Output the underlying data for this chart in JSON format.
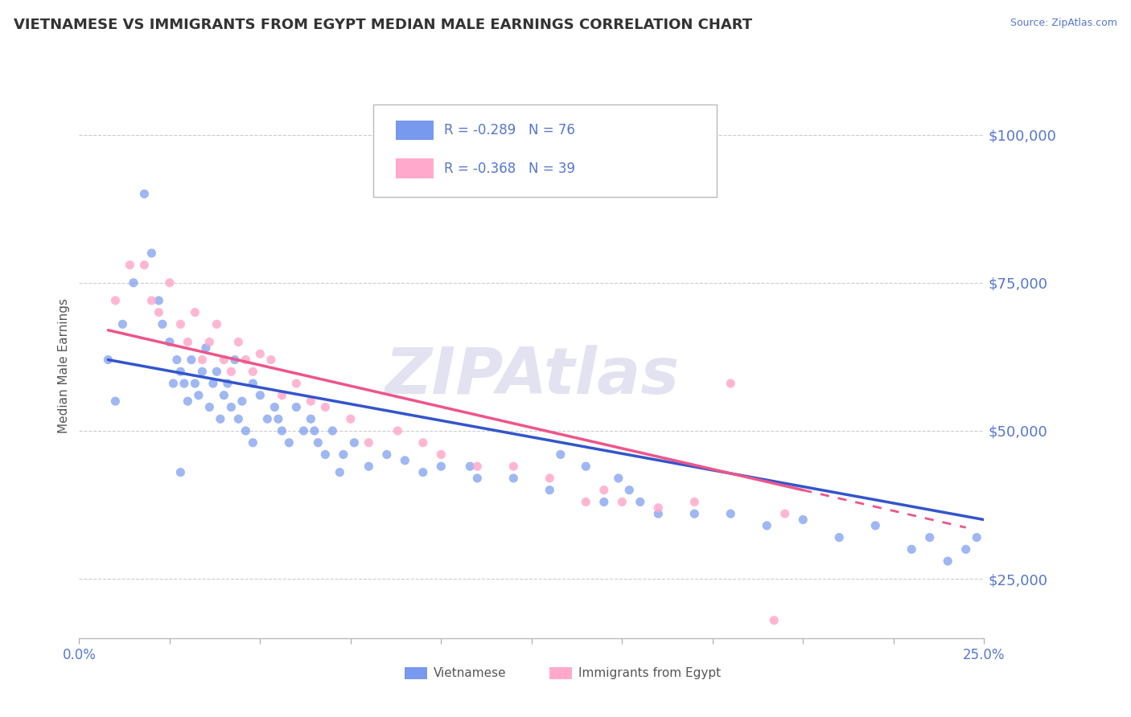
{
  "title": "VIETNAMESE VS IMMIGRANTS FROM EGYPT MEDIAN MALE EARNINGS CORRELATION CHART",
  "source": "Source: ZipAtlas.com",
  "ylabel": "Median Male Earnings",
  "xlim": [
    0.0,
    0.25
  ],
  "ylim": [
    15000,
    107000
  ],
  "yticks": [
    25000,
    50000,
    75000,
    100000
  ],
  "ytick_labels": [
    "$25,000",
    "$50,000",
    "$75,000",
    "$100,000"
  ],
  "xticks": [
    0.0,
    0.025,
    0.05,
    0.075,
    0.1,
    0.125,
    0.15,
    0.175,
    0.2,
    0.225,
    0.25
  ],
  "xtick_labels": [
    "0.0%",
    "",
    "",
    "",
    "",
    "",
    "",
    "",
    "",
    "",
    "25.0%"
  ],
  "legend_entries": [
    {
      "label": "R = -0.289   N = 76",
      "color": "#7799ee"
    },
    {
      "label": "R = -0.368   N = 39",
      "color": "#ffaacc"
    }
  ],
  "series1_label": "Vietnamese",
  "series2_label": "Immigrants from Egypt",
  "series1_color": "#7799ee",
  "series2_color": "#ffaacc",
  "series1_line_color": "#3355cc",
  "series2_line_color": "#ee5588",
  "watermark": "ZIPAtlas",
  "watermark_color": "#d0d0e8",
  "axis_color": "#5577cc",
  "grid_color": "#cccccc",
  "title_color": "#333333",
  "viet_trend_x0": 0.008,
  "viet_trend_y0": 62000,
  "viet_trend_x1": 0.25,
  "viet_trend_y1": 35000,
  "egypt_trend_x0": 0.008,
  "egypt_trend_y0": 67000,
  "egypt_trend_x1": 0.2,
  "egypt_trend_y1": 40000,
  "vietnamese_x": [
    0.008,
    0.01,
    0.012,
    0.015,
    0.018,
    0.02,
    0.022,
    0.023,
    0.025,
    0.026,
    0.027,
    0.028,
    0.029,
    0.03,
    0.031,
    0.032,
    0.033,
    0.034,
    0.035,
    0.036,
    0.037,
    0.038,
    0.039,
    0.04,
    0.041,
    0.042,
    0.043,
    0.044,
    0.045,
    0.046,
    0.048,
    0.05,
    0.052,
    0.054,
    0.056,
    0.058,
    0.06,
    0.062,
    0.064,
    0.066,
    0.068,
    0.07,
    0.073,
    0.076,
    0.08,
    0.085,
    0.09,
    0.095,
    0.1,
    0.11,
    0.12,
    0.13,
    0.145,
    0.155,
    0.16,
    0.17,
    0.18,
    0.19,
    0.2,
    0.21,
    0.22,
    0.23,
    0.235,
    0.24,
    0.245,
    0.248,
    0.149,
    0.152,
    0.14,
    0.133,
    0.108,
    0.072,
    0.065,
    0.055,
    0.048,
    0.028
  ],
  "vietnamese_y": [
    62000,
    55000,
    68000,
    75000,
    90000,
    80000,
    72000,
    68000,
    65000,
    58000,
    62000,
    60000,
    58000,
    55000,
    62000,
    58000,
    56000,
    60000,
    64000,
    54000,
    58000,
    60000,
    52000,
    56000,
    58000,
    54000,
    62000,
    52000,
    55000,
    50000,
    58000,
    56000,
    52000,
    54000,
    50000,
    48000,
    54000,
    50000,
    52000,
    48000,
    46000,
    50000,
    46000,
    48000,
    44000,
    46000,
    45000,
    43000,
    44000,
    42000,
    42000,
    40000,
    38000,
    38000,
    36000,
    36000,
    36000,
    34000,
    35000,
    32000,
    34000,
    30000,
    32000,
    28000,
    30000,
    32000,
    42000,
    40000,
    44000,
    46000,
    44000,
    43000,
    50000,
    52000,
    48000,
    43000
  ],
  "egypt_x": [
    0.01,
    0.014,
    0.018,
    0.02,
    0.022,
    0.025,
    0.028,
    0.03,
    0.032,
    0.034,
    0.036,
    0.038,
    0.04,
    0.042,
    0.044,
    0.046,
    0.048,
    0.05,
    0.053,
    0.056,
    0.06,
    0.064,
    0.068,
    0.075,
    0.08,
    0.088,
    0.095,
    0.1,
    0.11,
    0.12,
    0.13,
    0.14,
    0.15,
    0.16,
    0.18,
    0.195,
    0.145,
    0.17,
    0.192
  ],
  "egypt_y": [
    72000,
    78000,
    78000,
    72000,
    70000,
    75000,
    68000,
    65000,
    70000,
    62000,
    65000,
    68000,
    62000,
    60000,
    65000,
    62000,
    60000,
    63000,
    62000,
    56000,
    58000,
    55000,
    54000,
    52000,
    48000,
    50000,
    48000,
    46000,
    44000,
    44000,
    42000,
    38000,
    38000,
    37000,
    58000,
    36000,
    40000,
    38000,
    18000
  ]
}
